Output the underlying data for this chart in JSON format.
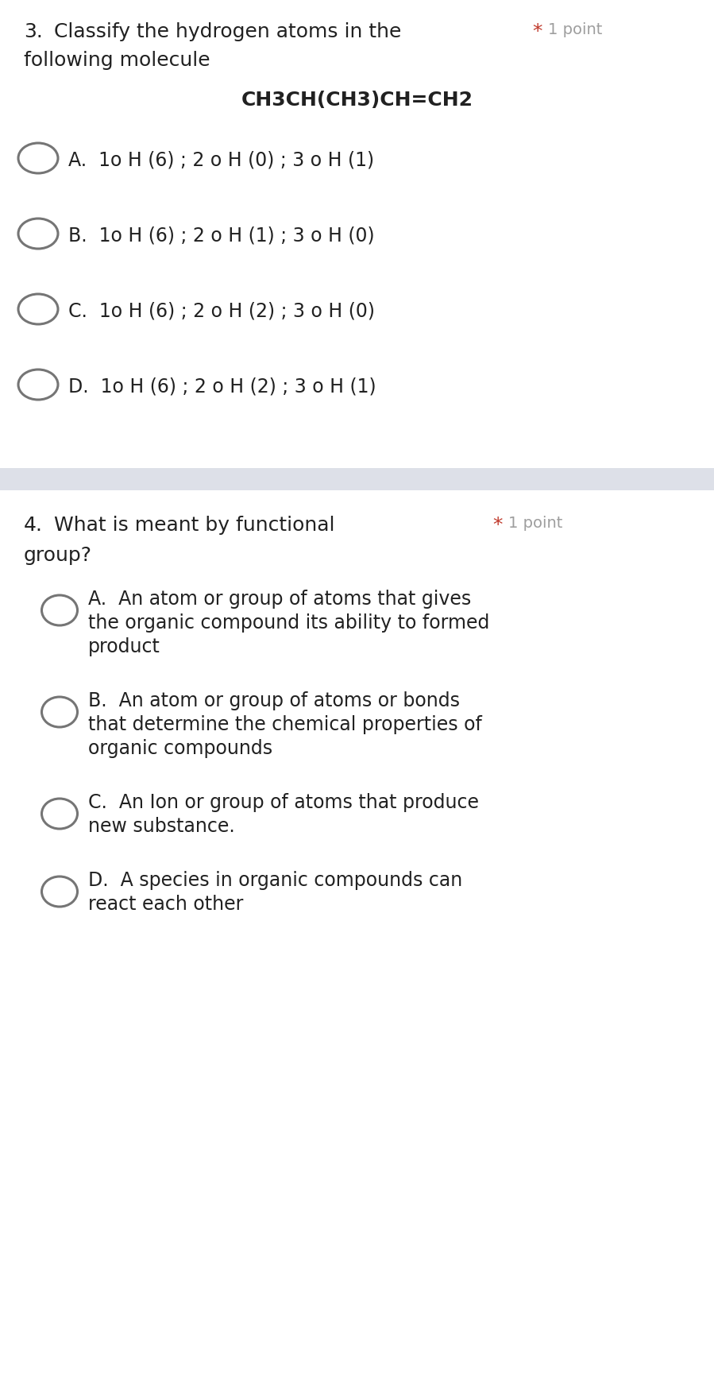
{
  "bg_color": "#ffffff",
  "separator_color": "#dde0e8",
  "q3": {
    "number": "3.",
    "question_line1": " Classify the hydrogen atoms in the",
    "question_line2": "following molecule",
    "star": "* ",
    "points": "1 point",
    "molecule": "CH3CH(CH3)CH=CH2",
    "options": [
      "A.  1o H (6) ; 2 o H (0) ; 3 o H (1)",
      "B.  1o H (6) ; 2 o H (1) ; 3 o H (0)",
      "C.  1o H (6) ; 2 o H (2) ; 3 o H (0)",
      "D.  1o H (6) ; 2 o H (2) ; 3 o H (1)"
    ]
  },
  "q4": {
    "number": "4.",
    "question_line1": " What is meant by functional",
    "question_line2": "group?",
    "star": "* ",
    "points": "1 point",
    "options_lines": [
      [
        "A.  An atom or group of atoms that gives",
        "the organic compound its ability to formed",
        "product"
      ],
      [
        "B.  An atom or group of atoms or bonds",
        "that determine the chemical properties of",
        "organic compounds"
      ],
      [
        "C.  An Ion or group of atoms that produce",
        "new substance."
      ],
      [
        "D.  A species in organic compounds can",
        "react each other"
      ]
    ]
  },
  "font_size_question": 18,
  "font_size_option": 17,
  "font_size_molecule": 18,
  "font_size_points": 14,
  "font_size_number": 18,
  "text_color": "#212121",
  "star_color": "#c0392b",
  "points_color": "#9e9e9e",
  "circle_color": "#757575",
  "lw_circle": 2.2
}
